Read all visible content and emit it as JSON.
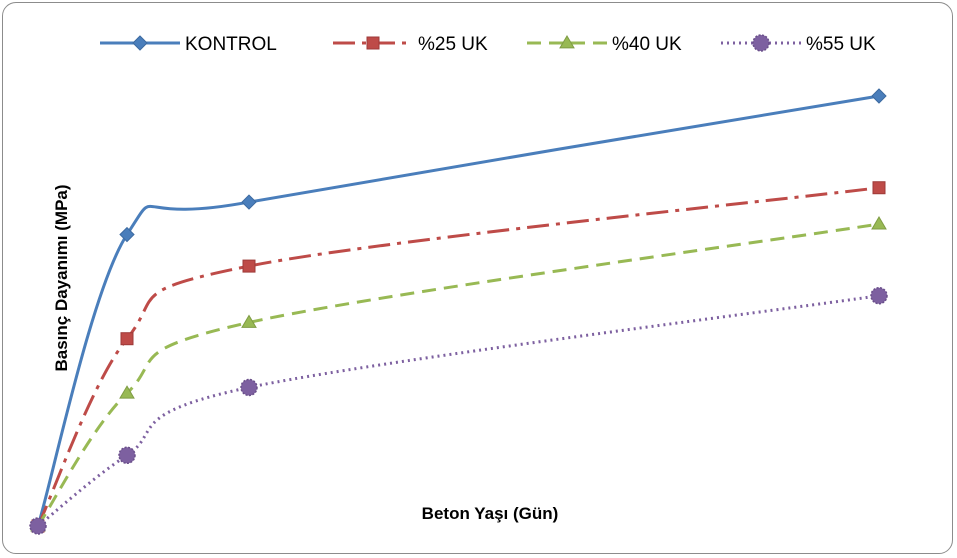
{
  "chart_data": {
    "type": "line",
    "title": "",
    "xlabel": "Beton Yaşı (Gün)",
    "ylabel": "Basınç Dayanımı (MPa)",
    "x": [
      0,
      3,
      7,
      28
    ],
    "xlim": [
      0,
      28
    ],
    "ylim": [
      0,
      45
    ],
    "x_axis_visible": false,
    "y_axis_visible": false,
    "grid": false,
    "legend_position": "top",
    "series": [
      {
        "name": "KONTROL",
        "values": [
          0,
          30.5,
          33.9,
          45.0
        ],
        "color": "#4a7ebb",
        "marker": "diamond",
        "dash": "solid"
      },
      {
        "name": "%25 UK",
        "values": [
          0,
          19.6,
          27.2,
          35.4
        ],
        "color": "#be4b48",
        "marker": "square",
        "dash": "dash-dot"
      },
      {
        "name": "%40 UK",
        "values": [
          0,
          13.9,
          21.3,
          31.6
        ],
        "color": "#98b954",
        "marker": "triangle",
        "dash": "dash"
      },
      {
        "name": "%55 UK",
        "values": [
          0,
          7.4,
          14.5,
          24.1
        ],
        "color": "#7d60a0",
        "marker": "circle",
        "dash": "dot"
      }
    ]
  }
}
